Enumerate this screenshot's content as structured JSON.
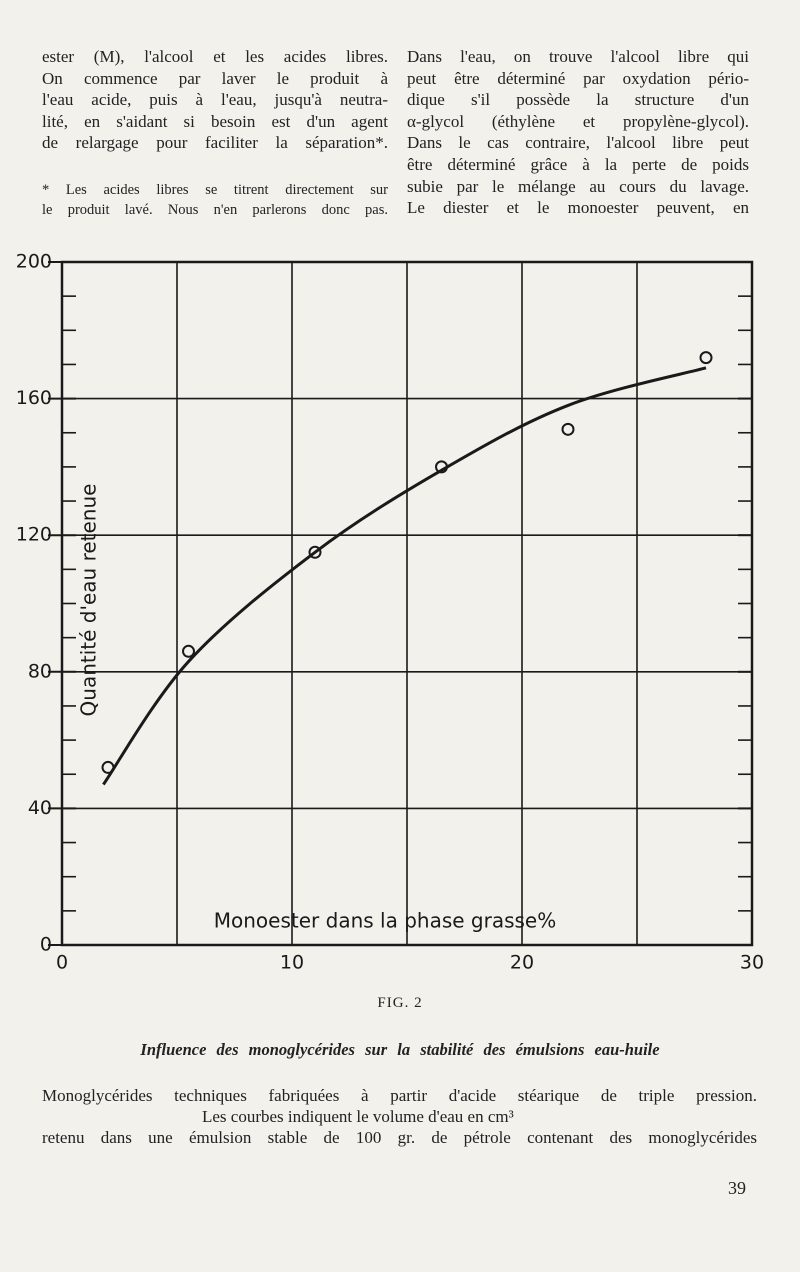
{
  "text": {
    "left_lines": [
      "ester (M), l'alcool et les acides libres.",
      "On commence par laver le produit à",
      "l'eau acide, puis à l'eau, jusqu'à neutra-",
      "lité, en s'aidant si besoin est d'un agent",
      "de relargage pour faciliter la séparation*."
    ],
    "footnote_lines": [
      "* Les acides libres se titrent directement sur",
      "le produit lavé. Nous n'en parlerons donc pas."
    ],
    "right_lines": [
      "Dans l'eau, on trouve l'alcool libre qui",
      "peut être déterminé par oxydation pério-",
      "dique s'il possède la structure d'un",
      "α-glycol (éthylène et propylène-glycol).",
      "Dans le cas contraire, l'alcool libre peut",
      "être déterminé grâce à la perte de poids",
      "subie par le mélange au cours du lavage.",
      "Le diester et le monoester peuvent, en"
    ]
  },
  "chart_data": {
    "type": "line",
    "y_label": "Quantité d'eau retenue",
    "x_label": "Monoester dans la phase grasse%",
    "xlim": [
      0,
      30
    ],
    "ylim": [
      0,
      200
    ],
    "xticks": [
      0,
      10,
      20,
      30
    ],
    "yticks": [
      0,
      40,
      80,
      120,
      160,
      200
    ],
    "grid": true,
    "series": [
      {
        "mode": "markers",
        "color": "#1a1a1a",
        "x": [
          2,
          5.5,
          11,
          16.5,
          22,
          28
        ],
        "values": [
          52,
          86,
          115,
          140,
          151,
          172
        ]
      },
      {
        "mode": "line",
        "color": "#1a1a1a",
        "x": [
          1.8,
          5.5,
          11,
          16.5,
          22,
          28
        ],
        "values": [
          47,
          83,
          115,
          139,
          158,
          169
        ]
      }
    ]
  },
  "figure": {
    "label": "FIG. 2",
    "caption": "Influence des monoglycérides sur la stabilité des émulsions eau-huile",
    "description_lines": [
      "Monoglycérides techniques fabriquées à partir d'acide stéarique de triple pression.",
      "Les courbes indiquent le volume d'eau en cm³",
      "retenu dans une émulsion stable de 100 gr. de pétrole contenant des monoglycérides"
    ]
  },
  "page_number": "39"
}
